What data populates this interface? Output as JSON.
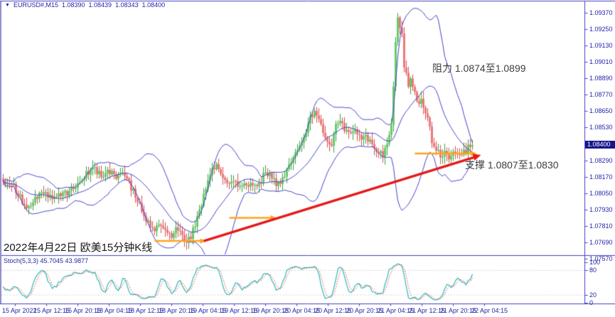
{
  "header": {
    "collapse_icon": "▼",
    "symbol": "EURUSD#,M15",
    "open": "1.08390",
    "high": "1.08439",
    "low": "1.08343",
    "close": "1.08400"
  },
  "annotations": {
    "resistance": "阻力 1.0874至1.0899",
    "support": "支撑 1.0807至1.0830",
    "caption": "2022年4月22日 欧美15分钟K线"
  },
  "indicator_label": "Stoch(5,3,3) 45.7045 43.9877",
  "price_axis": {
    "labels": [
      "1.09370",
      "1.09250",
      "1.09130",
      "1.09010",
      "1.08890",
      "1.08770",
      "1.08650",
      "1.08530",
      "1.08290",
      "1.08170",
      "1.08050",
      "1.07930",
      "1.07810",
      "1.07690",
      "1.07570"
    ],
    "current_price": "1.08400"
  },
  "stoch_axis": {
    "labels": [
      "100",
      "80",
      "20",
      "0"
    ],
    "values": [
      100,
      80,
      20,
      0
    ]
  },
  "time_axis": {
    "labels": [
      "15 Apr 2022",
      "15 Apr 12:15",
      "15 Apr 20:15",
      "18 Apr 04:15",
      "18 Apr 12:15",
      "18 Apr 20:15",
      "19 Apr 04:15",
      "19 Apr 12:15",
      "19 Apr 20:15",
      "20 Apr 04:15",
      "20 Apr 12:15",
      "20 Apr 20:15",
      "21 Apr 04:15",
      "21 Apr 12:15",
      "21 Apr 20:15",
      "22 Apr 04:15"
    ]
  },
  "colors": {
    "frame": "#4242c6",
    "left_bar": "#8c8cd0",
    "axis_text": "#2424a9",
    "band": "#4444cc",
    "bull_body": "#66cc66",
    "bull_line": "#3fa03f",
    "bear_body": "#ee7777",
    "bear_line": "#d05555",
    "stoch_main": "#2eb8b8",
    "stoch_signal": "#e04848",
    "grid_dotted": "#c9c9c9",
    "trendline": "#e51919",
    "support_arrow": "#ffa519",
    "price_badge_bg": "#15158c"
  },
  "chart_data": {
    "type": "candlestick",
    "title": "EURUSD# M15 with Bollinger Bands and Stochastic",
    "symbol": "EURUSD#",
    "timeframe": "M15",
    "ohlc_header": {
      "open": 1.0839,
      "high": 1.08439,
      "low": 1.08343,
      "close": 1.084
    },
    "y_axis": {
      "min": 1.0757,
      "max": 1.0937,
      "tick_step": 0.0012
    },
    "x_labels": [
      "15 Apr 2022",
      "15 Apr 12:15",
      "15 Apr 20:15",
      "18 Apr 04:15",
      "18 Apr 12:15",
      "18 Apr 20:15",
      "19 Apr 04:15",
      "19 Apr 12:15",
      "19 Apr 20:15",
      "20 Apr 04:15",
      "20 Apr 12:15",
      "20 Apr 20:15",
      "21 Apr 04:15",
      "21 Apr 12:15",
      "21 Apr 20:15",
      "22 Apr 04:15"
    ],
    "bars_total": 221,
    "close_path": [
      [
        0,
        1.0814
      ],
      [
        5,
        1.081
      ],
      [
        11,
        1.0793
      ],
      [
        17,
        1.0805
      ],
      [
        25,
        1.0802
      ],
      [
        32,
        1.0807
      ],
      [
        37,
        1.0816
      ],
      [
        42,
        1.0823
      ],
      [
        46,
        1.0818
      ],
      [
        49,
        1.0822
      ],
      [
        53,
        1.0817
      ],
      [
        56,
        1.0821
      ],
      [
        60,
        1.0809
      ],
      [
        64,
        1.0798
      ],
      [
        67,
        1.0785
      ],
      [
        71,
        1.0779
      ],
      [
        75,
        1.0782
      ],
      [
        79,
        1.0774
      ],
      [
        82,
        1.078
      ],
      [
        84,
        1.0772
      ],
      [
        86,
        1.0768
      ],
      [
        88,
        1.0774
      ],
      [
        90,
        1.0781
      ],
      [
        92,
        1.0793
      ],
      [
        95,
        1.0807
      ],
      [
        97,
        1.082
      ],
      [
        100,
        1.0825
      ],
      [
        102,
        1.0817
      ],
      [
        105,
        1.0812
      ],
      [
        108,
        1.0815
      ],
      [
        111,
        1.081
      ],
      [
        114,
        1.0813
      ],
      [
        117,
        1.0809
      ],
      [
        121,
        1.0813
      ],
      [
        123,
        1.0822
      ],
      [
        126,
        1.0815
      ],
      [
        129,
        1.0811
      ],
      [
        132,
        1.0818
      ],
      [
        134,
        1.0824
      ],
      [
        136,
        1.083
      ],
      [
        139,
        1.084
      ],
      [
        142,
        1.085
      ],
      [
        144,
        1.086
      ],
      [
        146,
        1.0865
      ],
      [
        148,
        1.0858
      ],
      [
        150,
        1.085
      ],
      [
        152,
        1.0843
      ],
      [
        154,
        1.084
      ],
      [
        156,
        1.0855
      ],
      [
        158,
        1.0859
      ],
      [
        160,
        1.0852
      ],
      [
        162,
        1.0848
      ],
      [
        165,
        1.0851
      ],
      [
        167,
        1.0846
      ],
      [
        170,
        1.0848
      ],
      [
        172,
        1.0842
      ],
      [
        175,
        1.0837
      ],
      [
        178,
        1.0833
      ],
      [
        180,
        1.0839
      ],
      [
        182,
        1.0857
      ],
      [
        183,
        1.0883
      ],
      [
        184,
        1.0914
      ],
      [
        185,
        1.0933
      ],
      [
        187,
        1.0922
      ],
      [
        188,
        1.0899
      ],
      [
        190,
        1.0883
      ],
      [
        191,
        1.0888
      ],
      [
        193,
        1.0878
      ],
      [
        195,
        1.087
      ],
      [
        196,
        1.0873
      ],
      [
        198,
        1.0865
      ],
      [
        200,
        1.0855
      ],
      [
        201,
        1.0844
      ],
      [
        203,
        1.0837
      ],
      [
        205,
        1.0832
      ],
      [
        207,
        1.0835
      ],
      [
        209,
        1.0831
      ],
      [
        211,
        1.0836
      ],
      [
        213,
        1.0832
      ],
      [
        215,
        1.0834
      ],
      [
        217,
        1.0836
      ],
      [
        218,
        1.0842
      ],
      [
        220,
        1.084
      ]
    ],
    "overlays": {
      "bollinger": {
        "period": 20,
        "deviation": 2
      }
    },
    "objects": {
      "trendline": {
        "from_bar": 94,
        "from_price": 1.077,
        "to_bar": 224,
        "to_price": 1.0833
      },
      "support_arrows": [
        {
          "from_bar": 71,
          "to_bar": 95,
          "price": 1.077
        },
        {
          "from_bar": 106,
          "to_bar": 128,
          "price": 1.0787
        },
        {
          "from_bar": 193,
          "to_bar": 222,
          "price": 1.0834
        }
      ],
      "resistance_zone": [
        1.0874,
        1.0899
      ],
      "support_zone": [
        1.0807,
        1.083
      ]
    },
    "indicator": {
      "name": "Stochastic",
      "params": [
        5,
        3,
        3
      ],
      "main_value": 45.7045,
      "signal_value": 43.9877,
      "levels": [
        80,
        20
      ],
      "range": [
        0,
        100
      ]
    }
  }
}
